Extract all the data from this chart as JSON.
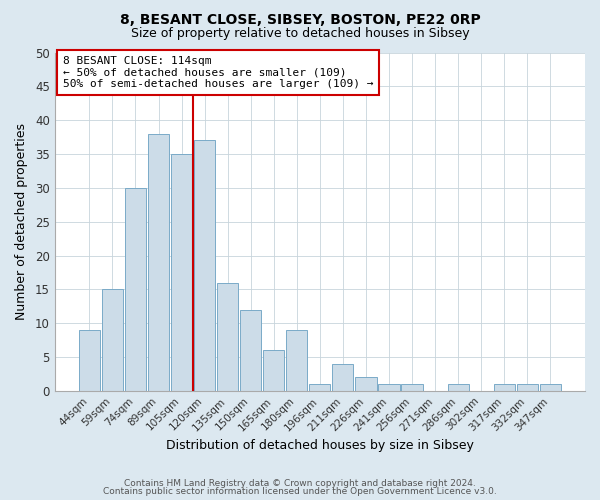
{
  "title": "8, BESANT CLOSE, SIBSEY, BOSTON, PE22 0RP",
  "subtitle": "Size of property relative to detached houses in Sibsey",
  "xlabel": "Distribution of detached houses by size in Sibsey",
  "ylabel": "Number of detached properties",
  "bar_labels": [
    "44sqm",
    "59sqm",
    "74sqm",
    "89sqm",
    "105sqm",
    "120sqm",
    "135sqm",
    "150sqm",
    "165sqm",
    "180sqm",
    "196sqm",
    "211sqm",
    "226sqm",
    "241sqm",
    "256sqm",
    "271sqm",
    "286sqm",
    "302sqm",
    "317sqm",
    "332sqm",
    "347sqm"
  ],
  "bar_values": [
    9,
    15,
    30,
    38,
    35,
    37,
    16,
    12,
    6,
    9,
    1,
    4,
    2,
    1,
    1,
    0,
    1,
    0,
    1,
    1,
    1
  ],
  "bar_color": "#ccdce8",
  "bar_edge_color": "#7aaac8",
  "vline_x": 4.5,
  "vline_color": "#cc0000",
  "annotation_box_text": "8 BESANT CLOSE: 114sqm\n← 50% of detached houses are smaller (109)\n50% of semi-detached houses are larger (109) →",
  "annotation_box_facecolor": "white",
  "annotation_box_edgecolor": "#cc0000",
  "ylim": [
    0,
    50
  ],
  "yticks": [
    0,
    5,
    10,
    15,
    20,
    25,
    30,
    35,
    40,
    45,
    50
  ],
  "plot_bg_color": "white",
  "figure_bg_color": "#dce8f0",
  "grid_color": "#c8d4dc",
  "footer_line1": "Contains HM Land Registry data © Crown copyright and database right 2024.",
  "footer_line2": "Contains public sector information licensed under the Open Government Licence v3.0."
}
